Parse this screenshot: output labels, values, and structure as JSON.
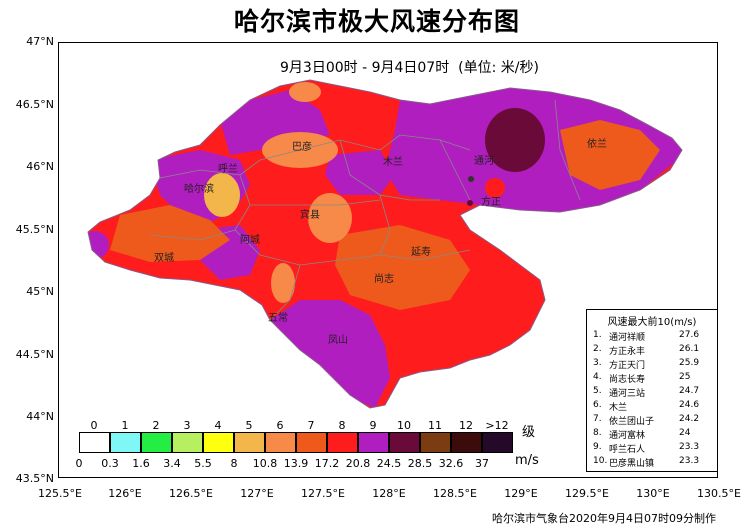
{
  "title": "哈尔滨市极大风速分布图",
  "subtitle": "9月3日00时 - 9月4日07时  (单位: 米/秒)",
  "y_axis": [
    "47°N",
    "46.5°N",
    "46°N",
    "45.5°N",
    "45°N",
    "44.5°N",
    "44°N",
    "43.5°N"
  ],
  "x_axis": [
    "125.5°E",
    "126°E",
    "126.5°E",
    "127°E",
    "127.5°E",
    "128°E",
    "128.5°E",
    "129°E",
    "129.5°E",
    "130°E",
    "130.5°E"
  ],
  "cities": [
    "通河",
    "依兰",
    "巴彦",
    "木兰",
    "呼兰",
    "哈尔滨",
    "宾县",
    "方正",
    "阿城",
    "双城",
    "延寿",
    "尚志",
    "五常",
    "凤山"
  ],
  "colorbar": {
    "levels": [
      "0",
      "1",
      "2",
      "3",
      "4",
      "5",
      "6",
      "7",
      "8",
      "9",
      "10",
      "11",
      "12",
      ">12"
    ],
    "thresholds": [
      "0",
      "0.3",
      "1.6",
      "3.4",
      "5.5",
      "8",
      "10.8",
      "13.9",
      "17.2",
      "20.8",
      "24.5",
      "28.5",
      "32.6",
      "37"
    ],
    "colors": [
      "#ffffff",
      "#7ff7f7",
      "#22ee44",
      "#b6f060",
      "#ffff10",
      "#f2b64a",
      "#f78a48",
      "#ee5a1c",
      "#ff1c1c",
      "#b01ec0",
      "#6a0a38",
      "#7a3c10",
      "#3c0c0c",
      "#240a28"
    ],
    "unit_level": "级",
    "unit_speed": "m/s"
  },
  "ranking": {
    "title": "风速最大前10(m/s)",
    "rows": [
      {
        "rank": "1.",
        "name": "通河祥顺",
        "value": "27.6"
      },
      {
        "rank": "2.",
        "name": "方正永丰",
        "value": "26.1"
      },
      {
        "rank": "3.",
        "name": "方正天门",
        "value": "25.9"
      },
      {
        "rank": "4.",
        "name": "尚志长寿",
        "value": "25"
      },
      {
        "rank": "5.",
        "name": "通河三站",
        "value": "24.7"
      },
      {
        "rank": "6.",
        "name": "木兰",
        "value": "24.6"
      },
      {
        "rank": "7.",
        "name": "依兰团山子",
        "value": "24.2"
      },
      {
        "rank": "8.",
        "name": "通河富林",
        "value": "24"
      },
      {
        "rank": "9.",
        "name": "呼兰石人",
        "value": "23.3"
      },
      {
        "rank": "10.",
        "name": "巴彦黑山镇",
        "value": "23.3"
      }
    ]
  },
  "footer": "哈尔滨市气象台2020年9月4日07时09分制作"
}
